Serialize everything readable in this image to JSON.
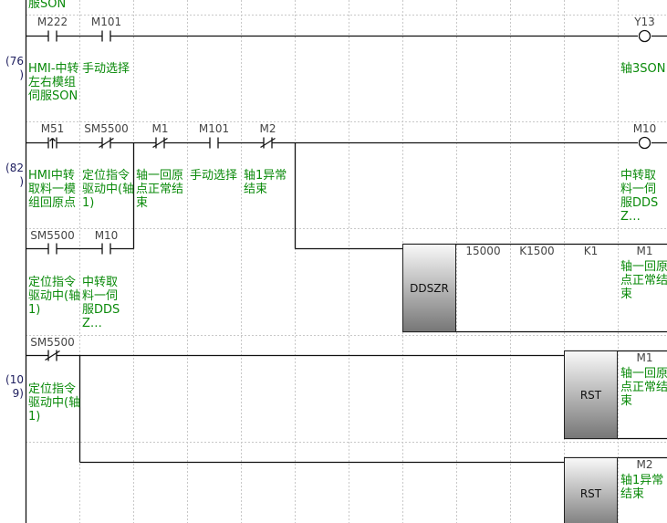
{
  "top_remnant": "服SON",
  "rungs": [
    {
      "step": "(76",
      "step_close": ")",
      "contacts": [
        {
          "device": "M222",
          "type": "normally-open",
          "comment": "HMI-中转左右模组伺服SON"
        },
        {
          "device": "M101",
          "type": "normally-open",
          "comment": "手动选择"
        }
      ],
      "coil": {
        "device": "Y13",
        "comment": "轴3SON"
      }
    },
    {
      "step": "(82",
      "step_close": ")",
      "contacts": [
        {
          "device": "M51",
          "type": "rising-edge",
          "comment": "HMI中转取料一模组回原点"
        },
        {
          "device": "SM5500",
          "type": "normally-closed",
          "comment": "定位指令驱动中(轴1)"
        },
        {
          "device": "M1",
          "type": "normally-closed",
          "comment": "轴一回原点正常结束"
        },
        {
          "device": "M101",
          "type": "normally-open",
          "comment": "手动选择"
        },
        {
          "device": "M2",
          "type": "normally-closed",
          "comment": "轴1异常结束"
        }
      ],
      "branch": [
        {
          "device": "SM5500",
          "type": "normally-open",
          "comment": "定位指令驱动中(轴1)"
        },
        {
          "device": "M10",
          "type": "normally-open",
          "comment": "中转取料一伺服DDSZ…"
        }
      ],
      "coil": {
        "device": "M10",
        "comment": "中转取料一伺服DDSZ…"
      },
      "instruction": {
        "name": "DDSZR",
        "operands": [
          "15000",
          "K1500",
          "K1",
          "M1"
        ],
        "operand_comment": "轴一回原点正常结束"
      }
    },
    {
      "step": "(10",
      "step_close": "9)",
      "contacts": [
        {
          "device": "SM5500",
          "type": "normally-closed",
          "comment": "定位指令驱动中(轴1)"
        }
      ],
      "instructions": [
        {
          "name": "RST",
          "operand": "M1",
          "comment": "轴一回原点正常结束"
        },
        {
          "name": "RST",
          "operand": "M2",
          "comment": "轴1异常结束"
        }
      ]
    }
  ]
}
